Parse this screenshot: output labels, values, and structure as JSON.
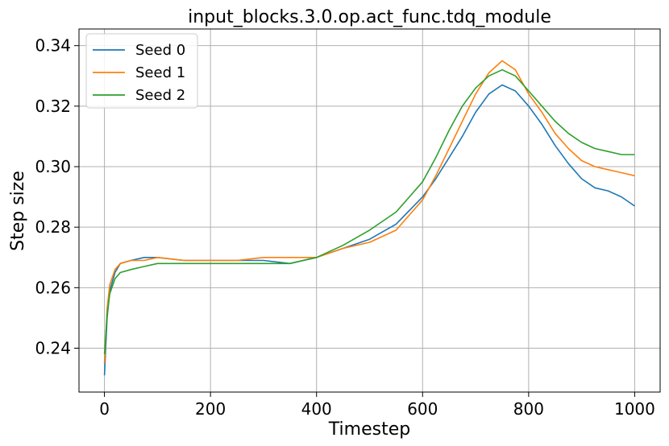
{
  "chart_data": {
    "type": "line",
    "title": "input_blocks.3.0.op.act_func.tdq_module",
    "xlabel": "Timestep",
    "ylabel": "Step size",
    "xlim": [
      -48,
      1048
    ],
    "ylim": [
      0.2255,
      0.3455
    ],
    "xticks": [
      0,
      200,
      400,
      600,
      800,
      1000
    ],
    "yticks": [
      0.24,
      0.26,
      0.28,
      0.3,
      0.32,
      0.34
    ],
    "xtick_labels": [
      "0",
      "200",
      "400",
      "600",
      "800",
      "1000"
    ],
    "ytick_labels": [
      "0.24",
      "0.26",
      "0.28",
      "0.30",
      "0.32",
      "0.34"
    ],
    "grid": true,
    "legend_position": "top-left",
    "x": [
      0,
      5,
      10,
      20,
      30,
      50,
      75,
      100,
      150,
      200,
      250,
      300,
      350,
      400,
      450,
      500,
      550,
      600,
      625,
      650,
      675,
      700,
      725,
      750,
      775,
      800,
      825,
      850,
      875,
      900,
      925,
      950,
      975,
      1000
    ],
    "series": [
      {
        "name": "Seed 0",
        "color": "#1f77b4",
        "values": [
          0.231,
          0.25,
          0.259,
          0.265,
          0.268,
          0.269,
          0.27,
          0.27,
          0.269,
          0.269,
          0.269,
          0.269,
          0.268,
          0.27,
          0.273,
          0.276,
          0.281,
          0.29,
          0.296,
          0.303,
          0.31,
          0.318,
          0.324,
          0.327,
          0.325,
          0.32,
          0.314,
          0.307,
          0.301,
          0.296,
          0.293,
          0.292,
          0.29,
          0.287
        ]
      },
      {
        "name": "Seed 1",
        "color": "#ff7f0e",
        "values": [
          0.235,
          0.253,
          0.261,
          0.266,
          0.268,
          0.269,
          0.269,
          0.27,
          0.269,
          0.269,
          0.269,
          0.27,
          0.27,
          0.27,
          0.273,
          0.275,
          0.279,
          0.289,
          0.297,
          0.306,
          0.315,
          0.324,
          0.331,
          0.335,
          0.332,
          0.324,
          0.318,
          0.311,
          0.306,
          0.302,
          0.3,
          0.299,
          0.298,
          0.297
        ]
      },
      {
        "name": "Seed 2",
        "color": "#2ca02c",
        "values": [
          0.238,
          0.251,
          0.258,
          0.263,
          0.265,
          0.266,
          0.267,
          0.268,
          0.268,
          0.268,
          0.268,
          0.268,
          0.268,
          0.27,
          0.274,
          0.279,
          0.285,
          0.295,
          0.303,
          0.312,
          0.32,
          0.326,
          0.33,
          0.332,
          0.33,
          0.325,
          0.32,
          0.315,
          0.311,
          0.308,
          0.306,
          0.305,
          0.304,
          0.304
        ]
      }
    ]
  }
}
